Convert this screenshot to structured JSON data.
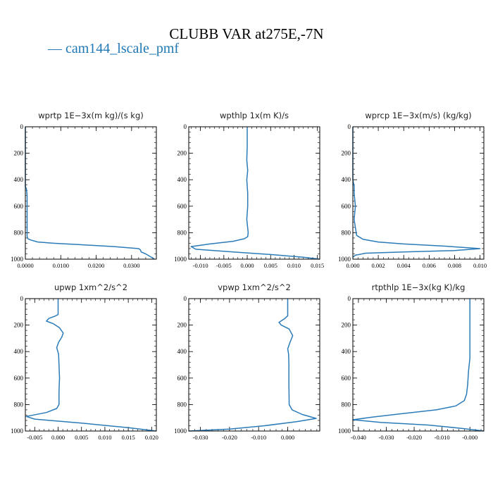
{
  "title": "CLUBB VAR at275E,-7N",
  "legend": {
    "label": "— cam144_lscale_pmf",
    "color": "#1f77b4"
  },
  "colors": {
    "series": "#2b7bb9",
    "axis": "#000000"
  },
  "chart_data": [
    {
      "type": "line",
      "title": "wprtp  1E−3x(m kg)/(s kg)",
      "xlim": [
        0,
        0.037
      ],
      "ylim": [
        1000,
        0
      ],
      "xticks": [
        0,
        0.01,
        0.02,
        0.03
      ],
      "xtick_labels": [
        "0.0000",
        "0.0100",
        "0.0200",
        "0.0300"
      ],
      "yticks": [
        0,
        200,
        400,
        600,
        800,
        1000
      ],
      "ytick_labels": [
        "0",
        "200",
        "400",
        "600",
        "800",
        "1000"
      ],
      "series": [
        {
          "name": "cam144_lscale_pmf",
          "x": [
            0,
            0,
            0.0003,
            0.0005,
            0.0005,
            0.0005,
            0.0005,
            0.0007,
            0.0015,
            0.0035,
            0.008,
            0.015,
            0.025,
            0.032,
            0.0325,
            0.0327,
            0.034,
            0.0365
          ],
          "y": [
            0,
            450,
            470,
            520,
            650,
            800,
            830,
            845,
            855,
            870,
            880,
            890,
            905,
            920,
            930,
            945,
            960,
            1000
          ]
        }
      ]
    },
    {
      "type": "line",
      "title": "wpthlp  1x(m K)/s",
      "xlim": [
        -0.0125,
        0.0155
      ],
      "ylim": [
        1000,
        0
      ],
      "xticks": [
        -0.01,
        -0.005,
        0,
        0.005,
        0.01,
        0.015
      ],
      "xtick_labels": [
        "-0.010",
        "-0.005",
        "0.000",
        "0.005",
        "0.010",
        "0.015"
      ],
      "yticks": [
        0,
        200,
        400,
        600,
        800,
        1000
      ],
      "ytick_labels": [
        "0",
        "200",
        "400",
        "600",
        "800",
        "1000"
      ],
      "series": [
        {
          "name": "cam144_lscale_pmf",
          "x": [
            0,
            0,
            -0.0001,
            0.0001,
            -0.0001,
            0.0001,
            0.0001,
            -0.0001,
            0.0002,
            0.0001,
            -0.0006,
            -0.003,
            -0.008,
            -0.012,
            -0.011,
            -0.003,
            0.005,
            0.012,
            0.0155
          ],
          "y": [
            0,
            150,
            250,
            330,
            400,
            500,
            600,
            700,
            800,
            830,
            845,
            865,
            885,
            905,
            925,
            945,
            965,
            985,
            1000
          ]
        }
      ]
    },
    {
      "type": "line",
      "title": "wprcp  1E−3x(m/s) (kg/kg)",
      "xlim": [
        0,
        0.0103
      ],
      "ylim": [
        1000,
        0
      ],
      "xticks": [
        0,
        0.002,
        0.004,
        0.006,
        0.008,
        0.01
      ],
      "xtick_labels": [
        "0.000",
        "0.002",
        "0.004",
        "0.006",
        "0.008",
        "0.010"
      ],
      "yticks": [
        0,
        200,
        400,
        600,
        800,
        1000
      ],
      "ytick_labels": [
        "0",
        "200",
        "400",
        "600",
        "800",
        "1000"
      ],
      "series": [
        {
          "name": "cam144_lscale_pmf",
          "x": [
            0,
            0,
            0.0001,
            0.0001,
            0.0002,
            0.0001,
            0.0003,
            0.0008,
            0.002,
            0.004,
            0.007,
            0.01,
            0.008,
            0.004,
            0.001,
            0.0002,
            0
          ],
          "y": [
            0,
            400,
            450,
            500,
            600,
            700,
            820,
            850,
            870,
            885,
            900,
            920,
            935,
            945,
            955,
            970,
            985
          ]
        }
      ]
    },
    {
      "type": "line",
      "title": "upwp  1xm^2/s^2",
      "xlim": [
        -0.007,
        0.021
      ],
      "ylim": [
        1000,
        0
      ],
      "xticks": [
        -0.005,
        0,
        0.005,
        0.01,
        0.015,
        0.02
      ],
      "xtick_labels": [
        "-0.005",
        "0.000",
        "0.005",
        "0.010",
        "0.015",
        "0.020"
      ],
      "yticks": [
        0,
        200,
        400,
        600,
        800,
        1000
      ],
      "ytick_labels": [
        "0",
        "200",
        "400",
        "600",
        "800",
        "1000"
      ],
      "series": [
        {
          "name": "cam144_lscale_pmf",
          "x": [
            0,
            0,
            -0.0005,
            -0.002,
            -0.0025,
            -0.001,
            0.0003,
            0.0011,
            0.0008,
            0.0001,
            -0.0003,
            0.0001,
            0.0002,
            0.0003,
            0.0002,
            0.0002,
            -0.0003,
            -0.0025,
            -0.0068,
            -0.005,
            0.005,
            0.015,
            0.021
          ],
          "y": [
            0,
            120,
            130,
            150,
            170,
            190,
            220,
            260,
            290,
            330,
            370,
            420,
            500,
            600,
            700,
            800,
            830,
            860,
            890,
            910,
            940,
            975,
            1000
          ]
        }
      ]
    },
    {
      "type": "line",
      "title": "vpwp  1xm^2/s^2",
      "xlim": [
        -0.034,
        0.011
      ],
      "ylim": [
        1000,
        0
      ],
      "xticks": [
        -0.03,
        -0.02,
        -0.01,
        0
      ],
      "xtick_labels": [
        "-0.030",
        "-0.020",
        "-0.010",
        "0.000"
      ],
      "yticks": [
        0,
        200,
        400,
        600,
        800,
        1000
      ],
      "ytick_labels": [
        "0",
        "200",
        "400",
        "600",
        "800",
        "1000"
      ],
      "series": [
        {
          "name": "cam144_lscale_pmf",
          "x": [
            0,
            0,
            -0.001,
            -0.003,
            -0.0022,
            0.0005,
            0.0017,
            0.0008,
            0,
            0.0003,
            0.0004,
            0.0004,
            0.0005,
            0.0015,
            0.005,
            0.0098,
            0.003,
            -0.008,
            -0.02,
            -0.034
          ],
          "y": [
            0,
            130,
            150,
            180,
            200,
            230,
            280,
            330,
            380,
            420,
            500,
            650,
            800,
            840,
            875,
            905,
            930,
            960,
            985,
            1000
          ]
        }
      ]
    },
    {
      "type": "line",
      "title": "rtpthlp  1E−3x(kg K)/kg",
      "xlim": [
        -0.042,
        0.005
      ],
      "ylim": [
        1000,
        0
      ],
      "xticks": [
        -0.04,
        -0.03,
        -0.02,
        -0.01,
        0
      ],
      "xtick_labels": [
        "-0.040",
        "-0.030",
        "-0.020",
        "-0.010",
        "-0.000"
      ],
      "yticks": [
        0,
        200,
        400,
        600,
        800,
        1000
      ],
      "ytick_labels": [
        "0",
        "200",
        "400",
        "600",
        "800",
        "1000"
      ],
      "series": [
        {
          "name": "cam144_lscale_pmf",
          "x": [
            0,
            0,
            0,
            -0.0005,
            -0.0008,
            -0.0012,
            -0.002,
            -0.005,
            -0.012,
            -0.025,
            -0.035,
            -0.042,
            -0.032,
            -0.015,
            -0.003,
            0.005
          ],
          "y": [
            0,
            300,
            450,
            550,
            650,
            720,
            770,
            810,
            840,
            870,
            895,
            915,
            935,
            955,
            980,
            1000
          ]
        }
      ]
    }
  ]
}
